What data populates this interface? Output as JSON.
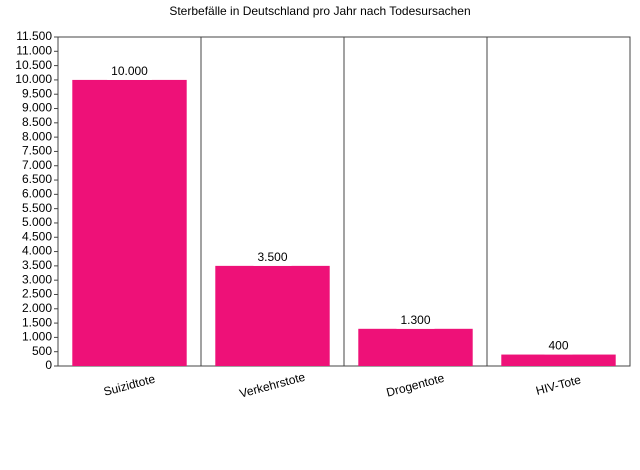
{
  "chart_data": {
    "type": "bar",
    "title": "Sterbefälle in Deutschland pro Jahr nach Todesursachen",
    "categories": [
      "Suizidtote",
      "Verkehrstote",
      "Drogentote",
      "HIV-Tote"
    ],
    "values": [
      10000,
      3500,
      1300,
      400
    ],
    "value_labels": [
      "10.000",
      "3.500",
      "1.300",
      "400"
    ],
    "color": "#ee1178",
    "ylim": [
      0,
      11500
    ],
    "yticks": [
      0,
      500,
      {
        "value": 1000,
        "label": "1.000"
      },
      {
        "value": 1500,
        "label": "1.500"
      },
      {
        "value": 2000,
        "label": "2.000"
      },
      {
        "value": 2500,
        "label": "2.500"
      },
      {
        "value": 3000,
        "label": "3.000"
      },
      {
        "value": 3500,
        "label": "3.500"
      },
      {
        "value": 4000,
        "label": "4.000"
      },
      {
        "value": 4500,
        "label": "4.500"
      },
      {
        "value": 5000,
        "label": "5.000"
      },
      {
        "value": 5500,
        "label": "5.500"
      },
      {
        "value": 6000,
        "label": "6.000"
      },
      {
        "value": 6500,
        "label": "6.500"
      },
      {
        "value": 7000,
        "label": "7.000"
      },
      {
        "value": 7500,
        "label": "7.500"
      },
      {
        "value": 8000,
        "label": "8.000"
      },
      {
        "value": 8500,
        "label": "8.500"
      },
      {
        "value": 9000,
        "label": "9.000"
      },
      {
        "value": 9500,
        "label": "9.500"
      },
      {
        "value": 10000,
        "label": "10.000"
      },
      {
        "value": 10500,
        "label": "10.500"
      },
      {
        "value": 11000,
        "label": "11.000"
      },
      {
        "value": 11500,
        "label": "11.500"
      }
    ]
  }
}
